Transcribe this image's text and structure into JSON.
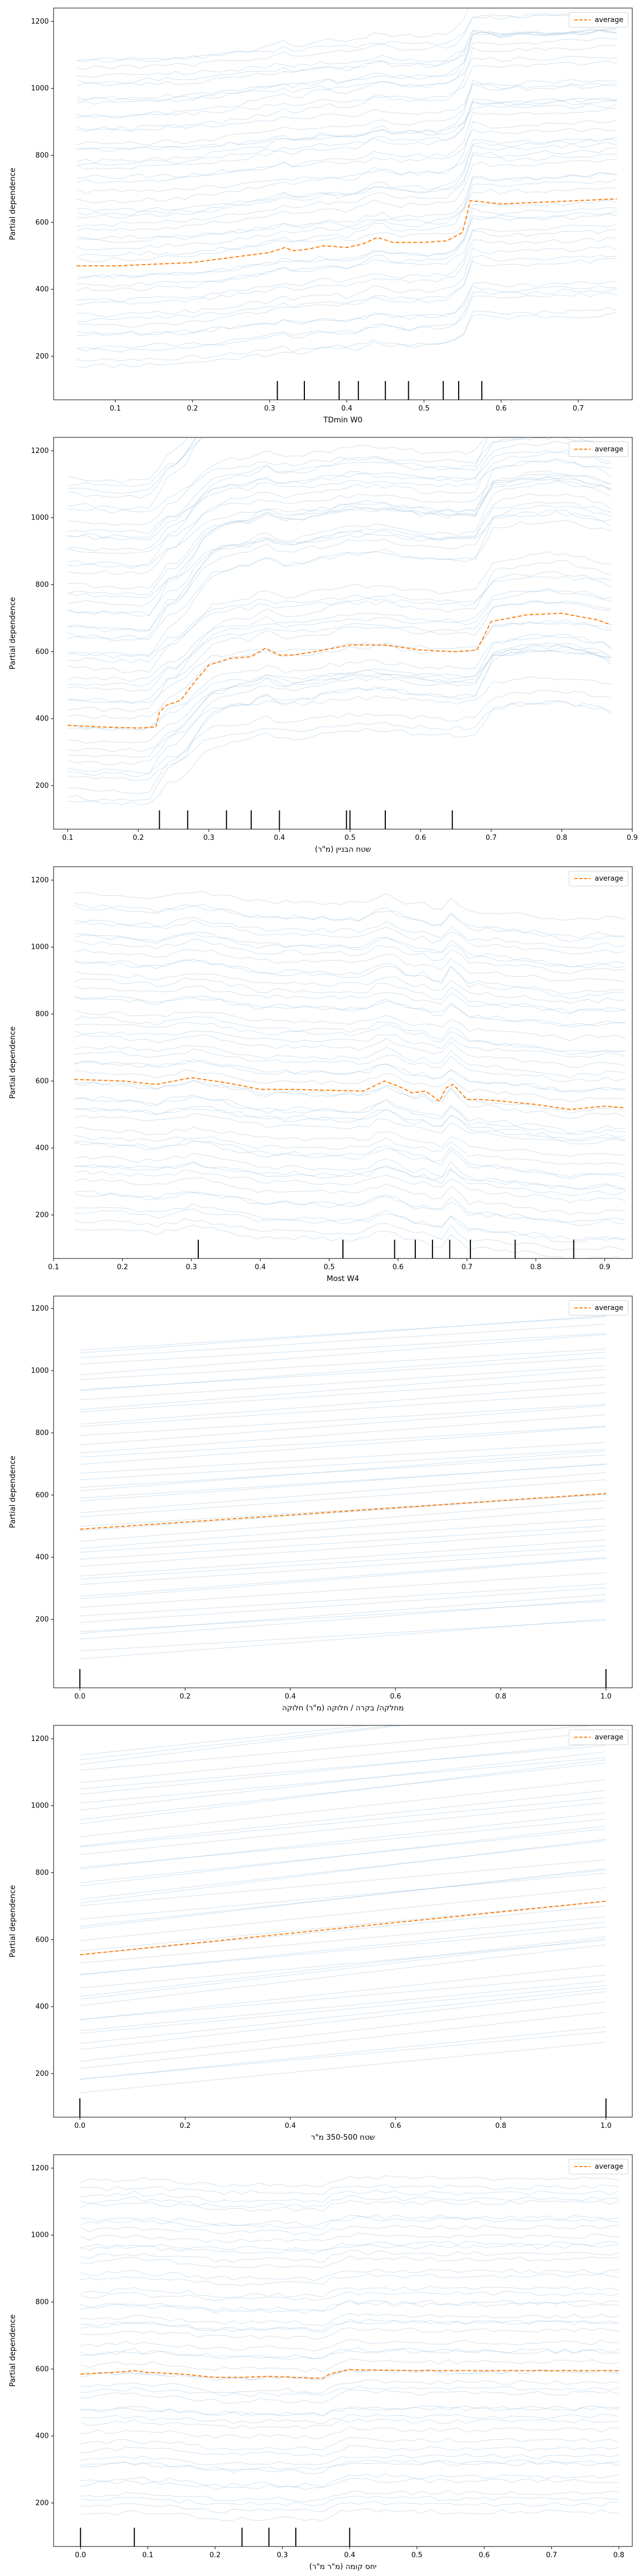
{
  "colors": {
    "ice": "#a8c8e2",
    "average": "#ff7f0e",
    "axis": "#000000",
    "rug": "#000000"
  },
  "chart_data": [
    {
      "type": "line",
      "title": "",
      "xlabel": "TDmin W0",
      "ylabel": "Partial dependence",
      "xlim": [
        0.02,
        0.77
      ],
      "ylim": [
        70,
        1240
      ],
      "xticks": [
        0.1,
        0.2,
        0.3,
        0.4,
        0.5,
        0.6,
        0.7
      ],
      "yticks": [
        200,
        400,
        600,
        800,
        1000,
        1200
      ],
      "legend": {
        "label": "average",
        "position": "top-right"
      },
      "rug": [
        0.31,
        0.345,
        0.39,
        0.415,
        0.45,
        0.48,
        0.525,
        0.545,
        0.575
      ],
      "average": {
        "x": [
          0.05,
          0.1,
          0.2,
          0.25,
          0.3,
          0.32,
          0.33,
          0.35,
          0.37,
          0.4,
          0.42,
          0.44,
          0.46,
          0.5,
          0.53,
          0.55,
          0.56,
          0.58,
          0.6,
          0.65,
          0.7,
          0.75
        ],
        "y": [
          470,
          470,
          480,
          495,
          510,
          525,
          515,
          520,
          530,
          525,
          535,
          555,
          540,
          540,
          545,
          570,
          665,
          660,
          655,
          660,
          665,
          670
        ]
      },
      "ice": {
        "count": 48,
        "seed": 11,
        "base_min": 180,
        "base_max": 1100,
        "spread": 0.35,
        "profile_x": [
          0.05,
          0.1,
          0.2,
          0.25,
          0.3,
          0.32,
          0.33,
          0.35,
          0.37,
          0.4,
          0.42,
          0.44,
          0.46,
          0.5,
          0.53,
          0.55,
          0.56,
          0.58,
          0.6,
          0.65,
          0.7,
          0.75
        ],
        "profile_y": [
          0,
          0,
          10,
          25,
          40,
          55,
          45,
          50,
          60,
          55,
          65,
          85,
          70,
          70,
          75,
          100,
          195,
          190,
          185,
          190,
          195,
          200
        ]
      }
    },
    {
      "type": "line",
      "title": "",
      "xlabel": "שטח הבניין (מ\"ר)",
      "ylabel": "Partial dependence",
      "xlim": [
        0.08,
        0.9
      ],
      "ylim": [
        70,
        1240
      ],
      "xticks": [
        0.1,
        0.2,
        0.3,
        0.4,
        0.5,
        0.6,
        0.7,
        0.8,
        0.9
      ],
      "yticks": [
        200,
        400,
        600,
        800,
        1000,
        1200
      ],
      "legend": {
        "label": "average",
        "position": "top-right"
      },
      "rug": [
        0.23,
        0.27,
        0.325,
        0.36,
        0.4,
        0.495,
        0.5,
        0.55,
        0.645
      ],
      "average": {
        "x": [
          0.1,
          0.15,
          0.2,
          0.225,
          0.23,
          0.24,
          0.26,
          0.28,
          0.3,
          0.33,
          0.36,
          0.38,
          0.4,
          0.42,
          0.45,
          0.5,
          0.55,
          0.6,
          0.65,
          0.68,
          0.7,
          0.75,
          0.8,
          0.85,
          0.87
        ],
        "y": [
          380,
          375,
          372,
          375,
          420,
          440,
          455,
          510,
          560,
          580,
          585,
          610,
          590,
          590,
          600,
          620,
          620,
          605,
          600,
          605,
          690,
          710,
          715,
          695,
          680
        ]
      },
      "ice": {
        "count": 48,
        "seed": 23,
        "base_min": 160,
        "base_max": 1120,
        "spread": 0.4,
        "profile_x": [
          0.1,
          0.15,
          0.2,
          0.225,
          0.23,
          0.24,
          0.26,
          0.28,
          0.3,
          0.33,
          0.36,
          0.38,
          0.4,
          0.42,
          0.45,
          0.5,
          0.55,
          0.6,
          0.65,
          0.68,
          0.7,
          0.75,
          0.8,
          0.85,
          0.87
        ],
        "profile_y": [
          0,
          -5,
          -8,
          -5,
          40,
          60,
          75,
          130,
          180,
          200,
          205,
          230,
          210,
          210,
          220,
          240,
          240,
          225,
          220,
          225,
          310,
          330,
          335,
          315,
          300
        ]
      }
    },
    {
      "type": "line",
      "title": "",
      "xlabel": "Most W4",
      "ylabel": "Partial dependence",
      "xlim": [
        0.1,
        0.94
      ],
      "ylim": [
        70,
        1240
      ],
      "xticks": [
        0.1,
        0.2,
        0.3,
        0.4,
        0.5,
        0.6,
        0.7,
        0.8,
        0.9
      ],
      "yticks": [
        200,
        400,
        600,
        800,
        1000,
        1200
      ],
      "legend": {
        "label": "average",
        "position": "top-right"
      },
      "rug": [
        0.31,
        0.52,
        0.595,
        0.625,
        0.65,
        0.675,
        0.705,
        0.77,
        0.855
      ],
      "average": {
        "x": [
          0.13,
          0.2,
          0.25,
          0.3,
          0.35,
          0.4,
          0.45,
          0.5,
          0.55,
          0.58,
          0.6,
          0.62,
          0.64,
          0.66,
          0.67,
          0.68,
          0.7,
          0.72,
          0.75,
          0.8,
          0.85,
          0.9,
          0.93
        ],
        "y": [
          605,
          600,
          590,
          610,
          595,
          575,
          575,
          572,
          570,
          600,
          585,
          565,
          570,
          540,
          580,
          590,
          545,
          545,
          540,
          530,
          515,
          525,
          520
        ]
      },
      "ice": {
        "count": 48,
        "seed": 37,
        "base_min": 170,
        "base_max": 1150,
        "spread": 0.2,
        "profile_x": [
          0.13,
          0.2,
          0.25,
          0.3,
          0.35,
          0.4,
          0.45,
          0.5,
          0.55,
          0.58,
          0.6,
          0.62,
          0.64,
          0.66,
          0.67,
          0.68,
          0.7,
          0.72,
          0.75,
          0.8,
          0.85,
          0.9,
          0.93
        ],
        "profile_y": [
          0,
          -5,
          -15,
          5,
          -10,
          -30,
          -30,
          -33,
          -35,
          -5,
          -20,
          -40,
          -35,
          -65,
          -25,
          -15,
          -60,
          -60,
          -65,
          -75,
          -90,
          -80,
          -85
        ]
      }
    },
    {
      "type": "line",
      "title": "",
      "xlabel": "מחלקה/ בקרה / חלוקה (מ\"ר) חלוקה",
      "ylabel": "Partial dependence",
      "xlim": [
        -0.05,
        1.05
      ],
      "ylim": [
        -20,
        1240
      ],
      "xticks": [
        0.0,
        0.2,
        0.4,
        0.6,
        0.8,
        1.0
      ],
      "yticks": [
        200,
        400,
        600,
        800,
        1000,
        1200
      ],
      "legend": {
        "label": "average",
        "position": "top-right"
      },
      "rug": [
        0.0,
        1.0
      ],
      "average": {
        "x": [
          0.0,
          1.0
        ],
        "y": [
          490,
          605
        ]
      },
      "ice": {
        "count": 46,
        "seed": 51,
        "base_min": 80,
        "base_max": 1080,
        "spread": 0.15,
        "profile_x": [
          0.0,
          1.0
        ],
        "profile_y": [
          0,
          115
        ]
      }
    },
    {
      "type": "line",
      "title": "",
      "xlabel": "שטח 350-500 מ\"ר",
      "ylabel": "Partial dependence",
      "xlim": [
        -0.05,
        1.05
      ],
      "ylim": [
        70,
        1240
      ],
      "xticks": [
        0.0,
        0.2,
        0.4,
        0.6,
        0.8,
        1.0
      ],
      "yticks": [
        200,
        400,
        600,
        800,
        1000,
        1200
      ],
      "legend": {
        "label": "average",
        "position": "top-right"
      },
      "rug": [
        0.0,
        1.0
      ],
      "average": {
        "x": [
          0.0,
          1.0
        ],
        "y": [
          555,
          715
        ]
      },
      "ice": {
        "count": 46,
        "seed": 67,
        "base_min": 150,
        "base_max": 1160,
        "spread": 0.2,
        "profile_x": [
          0.0,
          1.0
        ],
        "profile_y": [
          0,
          160
        ]
      }
    },
    {
      "type": "line",
      "title": "",
      "xlabel": "יחס קומה (מ\"ר מ\"ר)",
      "ylabel": "Partial dependence",
      "xlim": [
        -0.04,
        0.82
      ],
      "ylim": [
        70,
        1240
      ],
      "xticks": [
        0.0,
        0.1,
        0.2,
        0.3,
        0.4,
        0.5,
        0.6,
        0.7,
        0.8
      ],
      "yticks": [
        200,
        400,
        600,
        800,
        1000,
        1200
      ],
      "legend": {
        "label": "average",
        "position": "top-right"
      },
      "rug": [
        0.0,
        0.08,
        0.24,
        0.28,
        0.32,
        0.4
      ],
      "average": {
        "x": [
          0.0,
          0.05,
          0.08,
          0.1,
          0.15,
          0.2,
          0.24,
          0.28,
          0.32,
          0.36,
          0.37,
          0.38,
          0.4,
          0.5,
          0.6,
          0.7,
          0.8
        ],
        "y": [
          585,
          590,
          595,
          590,
          585,
          575,
          575,
          578,
          575,
          572,
          585,
          590,
          598,
          595,
          595,
          595,
          595
        ]
      },
      "ice": {
        "count": 48,
        "seed": 83,
        "base_min": 170,
        "base_max": 1160,
        "spread": 0.25,
        "profile_x": [
          0.0,
          0.05,
          0.08,
          0.1,
          0.15,
          0.2,
          0.24,
          0.28,
          0.32,
          0.36,
          0.37,
          0.38,
          0.4,
          0.5,
          0.6,
          0.7,
          0.8
        ],
        "profile_y": [
          0,
          5,
          10,
          5,
          0,
          -10,
          -10,
          -7,
          -10,
          -13,
          0,
          5,
          13,
          10,
          10,
          10,
          10
        ]
      }
    }
  ]
}
